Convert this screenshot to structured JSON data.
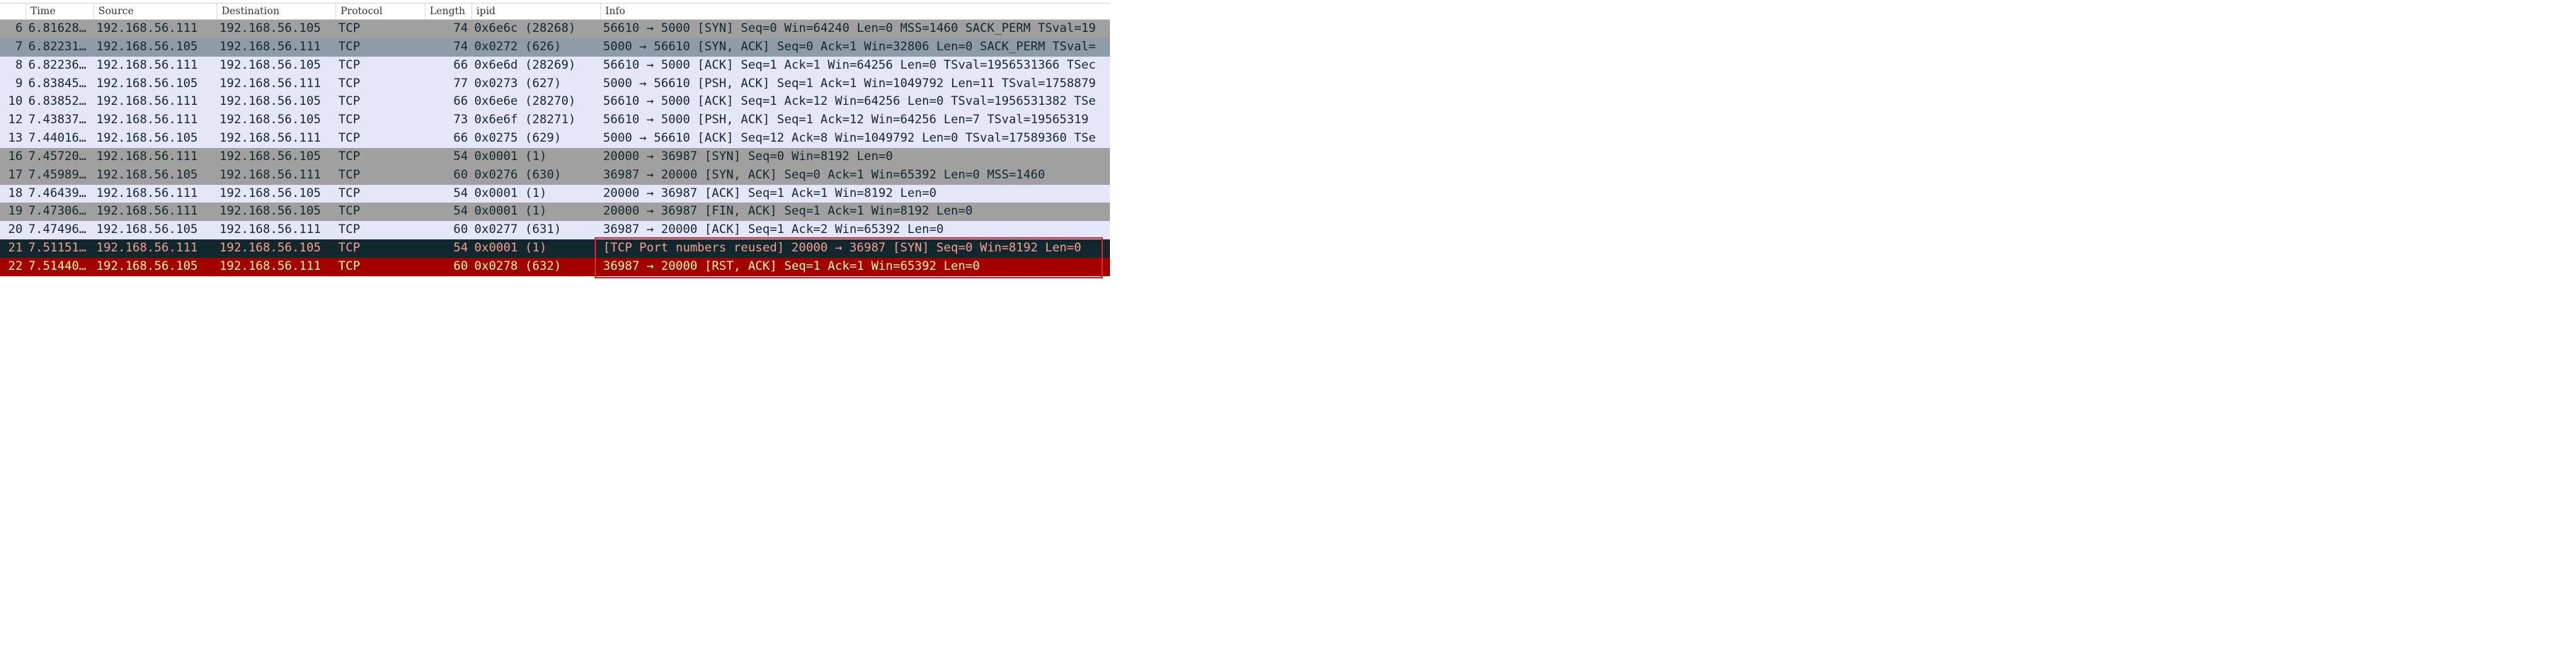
{
  "columns": [
    {
      "key": "no",
      "label": ""
    },
    {
      "key": "time",
      "label": "Time"
    },
    {
      "key": "source",
      "label": "Source"
    },
    {
      "key": "destination",
      "label": "Destination"
    },
    {
      "key": "protocol",
      "label": "Protocol"
    },
    {
      "key": "length",
      "label": "Length"
    },
    {
      "key": "ipid",
      "label": "ipid"
    },
    {
      "key": "info",
      "label": "Info"
    }
  ],
  "colors": {
    "gray_bg": "#a0a0a0",
    "selected_bg": "#8d9ca8",
    "lavender_bg": "#e6e6fa",
    "black_bg": "#12272e",
    "black_fg": "#f7a08e",
    "black_info_fg": "#f7a08e",
    "red_bg": "#a40000",
    "red_fg": "#fffc9c",
    "default_fg": "#12272e",
    "highlight_border": "#e02424"
  },
  "packets": [
    {
      "no": "6",
      "time": "6.81628…",
      "source": "192.168.56.111",
      "destination": "192.168.56.105",
      "protocol": "TCP",
      "length": "74",
      "ipid": "0x6e6c (28268)",
      "info": "56610 → 5000 [SYN] Seq=0 Win=64240 Len=0 MSS=1460 SACK_PERM TSval=19",
      "style": "gray"
    },
    {
      "no": "7",
      "time": "6.82231…",
      "source": "192.168.56.105",
      "destination": "192.168.56.111",
      "protocol": "TCP",
      "length": "74",
      "ipid": "0x0272 (626)",
      "info": "5000 → 56610 [SYN, ACK] Seq=0 Ack=1 Win=32806 Len=0 SACK_PERM TSval=",
      "style": "selected"
    },
    {
      "no": "8",
      "time": "6.82236…",
      "source": "192.168.56.111",
      "destination": "192.168.56.105",
      "protocol": "TCP",
      "length": "66",
      "ipid": "0x6e6d (28269)",
      "info": "56610 → 5000 [ACK] Seq=1 Ack=1 Win=64256 Len=0 TSval=1956531366 TSec",
      "style": "lavender"
    },
    {
      "no": "9",
      "time": "6.83845…",
      "source": "192.168.56.105",
      "destination": "192.168.56.111",
      "protocol": "TCP",
      "length": "77",
      "ipid": "0x0273 (627)",
      "info": "5000 → 56610 [PSH, ACK] Seq=1 Ack=1 Win=1049792 Len=11 TSval=1758879",
      "style": "lavender"
    },
    {
      "no": "10",
      "time": "6.83852…",
      "source": "192.168.56.111",
      "destination": "192.168.56.105",
      "protocol": "TCP",
      "length": "66",
      "ipid": "0x6e6e (28270)",
      "info": "56610 → 5000 [ACK] Seq=1 Ack=12 Win=64256 Len=0 TSval=1956531382 TSe",
      "style": "lavender"
    },
    {
      "no": "12",
      "time": "7.43837…",
      "source": "192.168.56.111",
      "destination": "192.168.56.105",
      "protocol": "TCP",
      "length": "73",
      "ipid": "0x6e6f (28271)",
      "info": "56610 → 5000 [PSH, ACK] Seq=1 Ack=12 Win=64256 Len=7 TSval=19565319",
      "style": "lavender"
    },
    {
      "no": "13",
      "time": "7.44016…",
      "source": "192.168.56.105",
      "destination": "192.168.56.111",
      "protocol": "TCP",
      "length": "66",
      "ipid": "0x0275 (629)",
      "info": "5000 → 56610 [ACK] Seq=12 Ack=8 Win=1049792 Len=0 TSval=17589360 TSe",
      "style": "lavender"
    },
    {
      "no": "16",
      "time": "7.45720…",
      "source": "192.168.56.111",
      "destination": "192.168.56.105",
      "protocol": "TCP",
      "length": "54",
      "ipid": "0x0001 (1)",
      "info": "20000 → 36987 [SYN] Seq=0 Win=8192 Len=0",
      "style": "gray"
    },
    {
      "no": "17",
      "time": "7.45989…",
      "source": "192.168.56.105",
      "destination": "192.168.56.111",
      "protocol": "TCP",
      "length": "60",
      "ipid": "0x0276 (630)",
      "info": "36987 → 20000 [SYN, ACK] Seq=0 Ack=1 Win=65392 Len=0 MSS=1460",
      "style": "gray"
    },
    {
      "no": "18",
      "time": "7.46439…",
      "source": "192.168.56.111",
      "destination": "192.168.56.105",
      "protocol": "TCP",
      "length": "54",
      "ipid": "0x0001 (1)",
      "info": "20000 → 36987 [ACK] Seq=1 Ack=1 Win=8192 Len=0",
      "style": "lavender"
    },
    {
      "no": "19",
      "time": "7.47306…",
      "source": "192.168.56.111",
      "destination": "192.168.56.105",
      "protocol": "TCP",
      "length": "54",
      "ipid": "0x0001 (1)",
      "info": "20000 → 36987 [FIN, ACK] Seq=1 Ack=1 Win=8192 Len=0",
      "style": "gray"
    },
    {
      "no": "20",
      "time": "7.47496…",
      "source": "192.168.56.105",
      "destination": "192.168.56.111",
      "protocol": "TCP",
      "length": "60",
      "ipid": "0x0277 (631)",
      "info": "36987 → 20000 [ACK] Seq=1 Ack=2 Win=65392 Len=0",
      "style": "lavender"
    },
    {
      "no": "21",
      "time": "7.51151…",
      "source": "192.168.56.111",
      "destination": "192.168.56.105",
      "protocol": "TCP",
      "length": "54",
      "ipid": "0x0001 (1)",
      "info": "[TCP Port numbers reused] 20000 → 36987 [SYN] Seq=0 Win=8192 Len=0",
      "style": "black"
    },
    {
      "no": "22",
      "time": "7.51440…",
      "source": "192.168.56.105",
      "destination": "192.168.56.111",
      "protocol": "TCP",
      "length": "60",
      "ipid": "0x0278 (632)",
      "info": "36987 → 20000 [RST, ACK] Seq=1 Ack=1 Win=65392 Len=0",
      "style": "red"
    }
  ]
}
